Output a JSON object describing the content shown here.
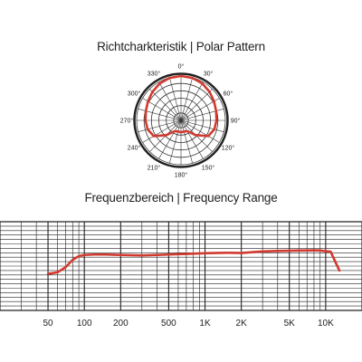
{
  "chart_data": [
    {
      "type": "polar",
      "title": "Richtcharkteristik | Polar Pattern",
      "angle_labels": [
        "0°",
        "30°",
        "60°",
        "90°",
        "120°",
        "150°",
        "180°",
        "210°",
        "240°",
        "270°",
        "300°",
        "330°"
      ],
      "angles_deg": [
        0,
        30,
        60,
        90,
        120,
        150,
        180,
        210,
        240,
        270,
        300,
        330
      ],
      "ring_count": 6,
      "series": [
        {
          "color": "#d23a2f",
          "angles_deg": [
            0,
            15,
            30,
            45,
            60,
            75,
            90,
            105,
            120,
            135,
            150,
            165,
            180,
            195,
            210,
            225,
            240,
            255,
            270,
            285,
            300,
            315,
            330,
            345
          ],
          "values": [
            1.0,
            0.99,
            0.96,
            0.91,
            0.86,
            0.82,
            0.8,
            0.78,
            0.71,
            0.47,
            0.28,
            0.26,
            0.27,
            0.26,
            0.28,
            0.47,
            0.71,
            0.78,
            0.8,
            0.82,
            0.86,
            0.91,
            0.96,
            0.99
          ]
        }
      ]
    },
    {
      "type": "line",
      "title": "Frequenzbereich | Frequency Range",
      "xscale": "log",
      "xlim": [
        20,
        20000
      ],
      "ylim": [
        -30,
        10
      ],
      "x_ticks": [
        50,
        100,
        200,
        500,
        1000,
        2000,
        5000,
        10000
      ],
      "x_tick_labels": [
        "50",
        "100",
        "200",
        "500",
        "1K",
        "2K",
        "5K",
        "10K"
      ],
      "grid": true,
      "series": [
        {
          "color": "#d23a2f",
          "x": [
            50,
            60,
            70,
            80,
            90,
            100,
            120,
            150,
            200,
            300,
            400,
            500,
            700,
            1000,
            1500,
            2000,
            3000,
            4000,
            5000,
            6000,
            7000,
            8000,
            9000,
            10000,
            11000,
            12000,
            13000
          ],
          "y": [
            -13.5,
            -12.8,
            -10.5,
            -7.2,
            -5.5,
            -5.0,
            -4.8,
            -4.8,
            -5.0,
            -5.2,
            -5.0,
            -4.8,
            -4.5,
            -4.2,
            -4.0,
            -4.1,
            -3.4,
            -3.2,
            -3.1,
            -3.0,
            -3.0,
            -2.9,
            -3.0,
            -3.3,
            -3.5,
            -8.0,
            -12.0
          ]
        }
      ]
    }
  ]
}
